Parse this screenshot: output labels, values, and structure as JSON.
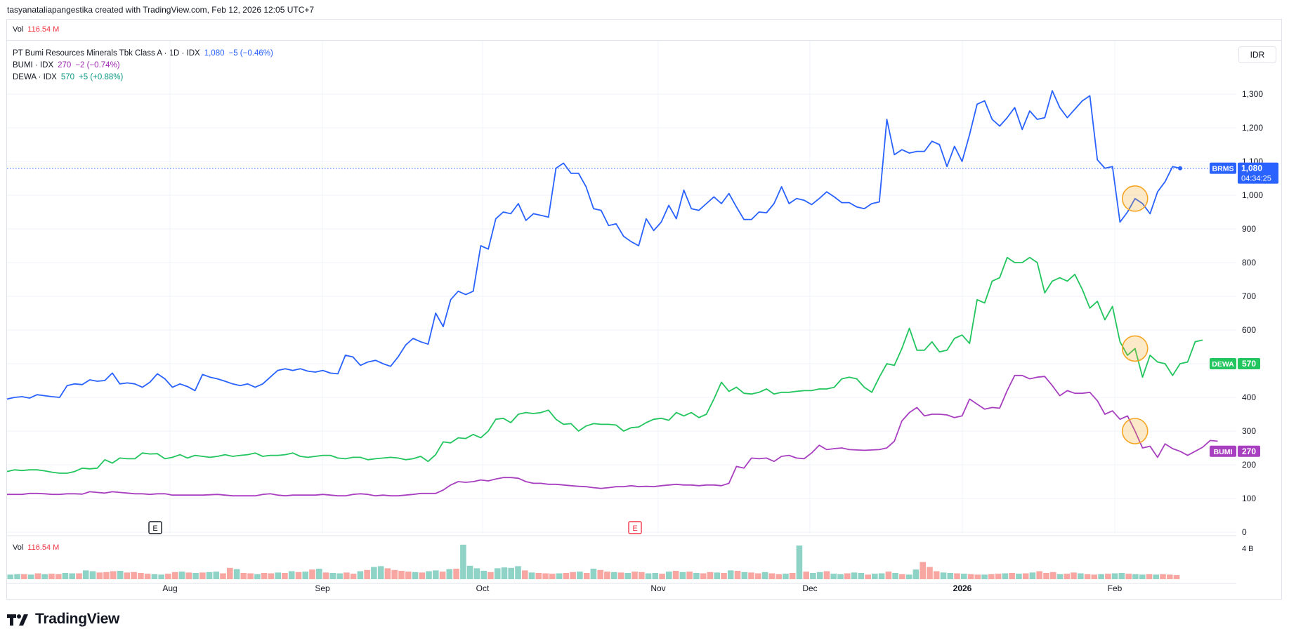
{
  "attribution": "tasyanataliapangestika created with TradingView.com, Feb 12, 2026 12:05 UTC+7",
  "top_pane": {
    "vol_label": "Vol",
    "vol_value": "116.54 M"
  },
  "legend": {
    "main": {
      "name": "PT Bumi Resources Minerals Tbk Class A · 1D · IDX",
      "price": "1,080",
      "change": "−5 (−0.46%)"
    },
    "bumi": {
      "name": "BUMI · IDX",
      "price": "270",
      "change": "−2 (−0.74%)"
    },
    "dewa": {
      "name": "DEWA · IDX",
      "price": "570",
      "change": "+5 (+0.88%)"
    }
  },
  "currency_button": "IDR",
  "volume_pane": {
    "label": "Vol",
    "value": "116.54 M",
    "scale_label": "4 B"
  },
  "brand": "TradingView",
  "colors": {
    "brms": "#2962ff",
    "dewa": "#22c55e",
    "bumi": "#a83fc0",
    "vol_up": "#8fd3c7",
    "vol_down": "#f7a6a1",
    "highlight": "#f5a623"
  },
  "chart_data": {
    "type": "line",
    "x_ticks": [
      "Aug",
      "Sep",
      "Oct",
      "Nov",
      "Dec",
      "2026",
      "Feb"
    ],
    "y_ticks": [
      "1,300",
      "1,200",
      "1,100",
      "1,000",
      "900",
      "800",
      "700",
      "600",
      "500",
      "400",
      "300",
      "200",
      "100",
      "0"
    ],
    "ylim": [
      0,
      1300
    ],
    "earnings_markers": [
      "E",
      "E"
    ],
    "series": [
      {
        "name": "BRMS",
        "last_label": "1,080",
        "countdown": "04:34:25",
        "values": [
          395,
          400,
          402,
          398,
          408,
          405,
          402,
          400,
          435,
          440,
          438,
          452,
          448,
          450,
          472,
          440,
          443,
          440,
          430,
          445,
          470,
          455,
          430,
          440,
          432,
          420,
          468,
          460,
          455,
          448,
          440,
          435,
          440,
          430,
          440,
          460,
          480,
          485,
          480,
          485,
          478,
          475,
          480,
          472,
          470,
          525,
          520,
          495,
          505,
          510,
          500,
          492,
          520,
          555,
          575,
          565,
          558,
          650,
          610,
          690,
          715,
          705,
          715,
          850,
          840,
          930,
          950,
          945,
          975,
          925,
          945,
          940,
          935,
          1080,
          1095,
          1065,
          1065,
          1025,
          960,
          955,
          910,
          915,
          878,
          862,
          850,
          930,
          895,
          920,
          970,
          930,
          1015,
          960,
          955,
          975,
          995,
          975,
          1005,
          965,
          928,
          928,
          950,
          948,
          975,
          1025,
          975,
          990,
          985,
          972,
          990,
          1010,
          995,
          978,
          978,
          965,
          960,
          975,
          980,
          1225,
          1120,
          1135,
          1125,
          1130,
          1130,
          1160,
          1150,
          1085,
          1145,
          1100,
          1180,
          1270,
          1280,
          1225,
          1205,
          1230,
          1260,
          1195,
          1250,
          1225,
          1230,
          1310,
          1260,
          1230,
          1255,
          1280,
          1295,
          1105,
          1080,
          1085,
          920,
          950,
          990,
          975,
          945,
          1010,
          1040,
          1085,
          1080
        ]
      },
      {
        "name": "DEWA",
        "last_label": "570",
        "values": [
          180,
          185,
          183,
          185,
          185,
          182,
          178,
          175,
          175,
          180,
          190,
          188,
          190,
          215,
          205,
          220,
          218,
          218,
          235,
          232,
          233,
          218,
          222,
          230,
          220,
          228,
          225,
          222,
          225,
          230,
          225,
          228,
          230,
          235,
          225,
          228,
          228,
          230,
          235,
          225,
          222,
          225,
          228,
          228,
          220,
          218,
          222,
          222,
          215,
          218,
          220,
          222,
          220,
          215,
          218,
          225,
          210,
          230,
          268,
          265,
          280,
          278,
          290,
          280,
          300,
          335,
          338,
          325,
          350,
          355,
          352,
          355,
          362,
          335,
          320,
          322,
          300,
          315,
          322,
          320,
          320,
          318,
          300,
          310,
          312,
          325,
          335,
          338,
          332,
          355,
          345,
          355,
          340,
          350,
          395,
          445,
          418,
          430,
          412,
          410,
          415,
          425,
          410,
          415,
          415,
          418,
          420,
          420,
          425,
          425,
          430,
          455,
          460,
          455,
          430,
          415,
          460,
          500,
          495,
          545,
          605,
          540,
          540,
          565,
          535,
          540,
          575,
          585,
          560,
          690,
          680,
          745,
          755,
          815,
          800,
          800,
          815,
          800,
          710,
          745,
          755,
          745,
          765,
          720,
          665,
          685,
          630,
          670,
          565,
          525,
          545,
          460,
          525,
          505,
          500,
          465,
          500,
          505,
          565,
          570
        ]
      },
      {
        "name": "BUMI",
        "last_label": "270",
        "values": [
          112,
          112,
          112,
          115,
          115,
          114,
          112,
          112,
          114,
          114,
          113,
          120,
          118,
          116,
          120,
          118,
          116,
          114,
          114,
          112,
          114,
          114,
          110,
          110,
          110,
          110,
          110,
          111,
          112,
          110,
          108,
          108,
          108,
          108,
          112,
          114,
          110,
          108,
          110,
          110,
          110,
          110,
          112,
          110,
          108,
          108,
          112,
          114,
          112,
          108,
          110,
          108,
          108,
          110,
          112,
          115,
          115,
          115,
          125,
          140,
          150,
          148,
          150,
          155,
          152,
          158,
          162,
          162,
          160,
          150,
          145,
          145,
          142,
          142,
          140,
          138,
          136,
          135,
          132,
          130,
          132,
          135,
          135,
          138,
          135,
          136,
          135,
          138,
          140,
          142,
          140,
          140,
          138,
          140,
          140,
          138,
          145,
          195,
          190,
          220,
          218,
          220,
          210,
          225,
          228,
          220,
          218,
          235,
          258,
          245,
          248,
          250,
          245,
          244,
          243,
          244,
          245,
          250,
          270,
          330,
          355,
          370,
          345,
          350,
          350,
          348,
          340,
          345,
          395,
          380,
          365,
          370,
          368,
          420,
          465,
          465,
          455,
          460,
          462,
          435,
          405,
          420,
          412,
          412,
          415,
          390,
          350,
          360,
          335,
          345,
          300,
          250,
          255,
          222,
          262,
          248,
          240,
          228,
          240,
          252,
          272,
          270
        ]
      }
    ],
    "volume": {
      "values": [
        0.55,
        0.6,
        0.6,
        0.55,
        0.7,
        0.6,
        0.65,
        0.6,
        0.75,
        0.7,
        0.7,
        1.05,
        0.95,
        0.8,
        0.85,
        0.95,
        1.0,
        0.8,
        0.85,
        0.75,
        0.65,
        0.6,
        0.55,
        0.65,
        0.85,
        0.9,
        0.8,
        0.75,
        0.8,
        0.85,
        0.9,
        0.7,
        1.35,
        1.2,
        0.75,
        0.7,
        0.6,
        0.75,
        0.7,
        0.8,
        0.75,
        0.95,
        0.85,
        0.9,
        1.15,
        1.25,
        0.8,
        0.75,
        0.7,
        0.8,
        0.65,
        0.95,
        1.1,
        1.45,
        1.55,
        1.3,
        1.1,
        1.0,
        0.9,
        0.85,
        0.8,
        0.95,
        1.05,
        0.9,
        1.2,
        1.25,
        4.1,
        1.6,
        1.3,
        1.0,
        0.85,
        1.3,
        1.4,
        1.35,
        1.55,
        1.05,
        0.8,
        0.75,
        0.7,
        0.65,
        0.7,
        0.75,
        0.85,
        0.9,
        0.75,
        1.25,
        1.1,
        0.9,
        0.85,
        0.8,
        0.75,
        0.9,
        0.85,
        0.7,
        0.75,
        0.65,
        0.9,
        1.0,
        0.85,
        0.9,
        0.75,
        0.7,
        0.85,
        0.8,
        0.75,
        1.05,
        1.0,
        0.85,
        0.8,
        0.7,
        0.85,
        0.7,
        0.6,
        0.65,
        0.75,
        4.0,
        0.9,
        0.75,
        0.85,
        0.95,
        0.65,
        0.6,
        0.7,
        0.8,
        0.75,
        0.55,
        0.65,
        0.7,
        0.9,
        0.75,
        0.6,
        0.55,
        1.15,
        2.05,
        1.45,
        0.95,
        0.8,
        0.75,
        0.7,
        0.65,
        0.6,
        0.55,
        0.55,
        0.6,
        0.65,
        0.7,
        0.75,
        0.65,
        0.7,
        0.8,
        0.95,
        0.75,
        0.85,
        0.6,
        0.65,
        0.8,
        0.7,
        0.6,
        0.55,
        0.6,
        0.65,
        0.7,
        0.75,
        0.65,
        0.6,
        0.55,
        0.6,
        0.55,
        0.6,
        0.55,
        0.5
      ],
      "up": [
        1,
        1,
        0,
        1,
        0,
        1,
        0,
        0,
        1,
        1,
        0,
        1,
        1,
        0,
        0,
        0,
        1,
        0,
        0,
        0,
        0,
        1,
        1,
        0,
        0,
        1,
        0,
        1,
        0,
        1,
        1,
        0,
        0,
        1,
        0,
        0,
        1,
        0,
        0,
        1,
        0,
        1,
        0,
        1,
        0,
        1,
        0,
        1,
        1,
        0,
        0,
        1,
        0,
        1,
        1,
        0,
        0,
        0,
        0,
        1,
        0,
        1,
        1,
        0,
        1,
        0,
        1,
        1,
        1,
        1,
        0,
        1,
        1,
        1,
        1,
        0,
        1,
        0,
        0,
        0,
        1,
        0,
        0,
        1,
        0,
        1,
        0,
        0,
        1,
        0,
        1,
        0,
        0,
        1,
        1,
        0,
        1,
        0,
        1,
        0,
        1,
        0,
        0,
        1,
        0,
        1,
        0,
        1,
        0,
        0,
        1,
        0,
        0,
        1,
        0,
        1,
        0,
        1,
        1,
        0,
        1,
        1,
        0,
        1,
        1,
        0,
        1,
        1,
        0,
        1,
        0,
        1,
        1,
        0,
        0,
        0,
        1,
        1,
        0,
        1,
        0,
        0,
        1,
        0,
        0,
        1,
        0,
        1,
        0,
        1,
        0,
        0,
        0,
        1,
        0,
        0,
        1,
        0,
        0,
        1,
        0,
        1,
        1,
        0,
        1,
        1,
        0,
        1
      ]
    }
  }
}
